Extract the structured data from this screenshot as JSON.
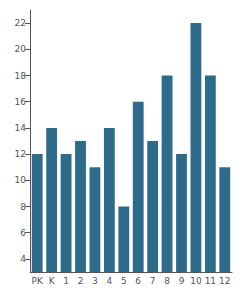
{
  "chart_data": {
    "type": "bar",
    "categories": [
      "PK",
      "K",
      "1",
      "2",
      "3",
      "4",
      "5",
      "6",
      "7",
      "8",
      "9",
      "10",
      "11",
      "12"
    ],
    "values": [
      12,
      14,
      12,
      13,
      11,
      14,
      8,
      16,
      13,
      18,
      12,
      22,
      18,
      11
    ],
    "color": "#2e6b8a",
    "ylim": [
      3,
      23
    ],
    "yticks": [
      4,
      6,
      8,
      10,
      12,
      14,
      16,
      18,
      20,
      22
    ],
    "grid": false
  }
}
